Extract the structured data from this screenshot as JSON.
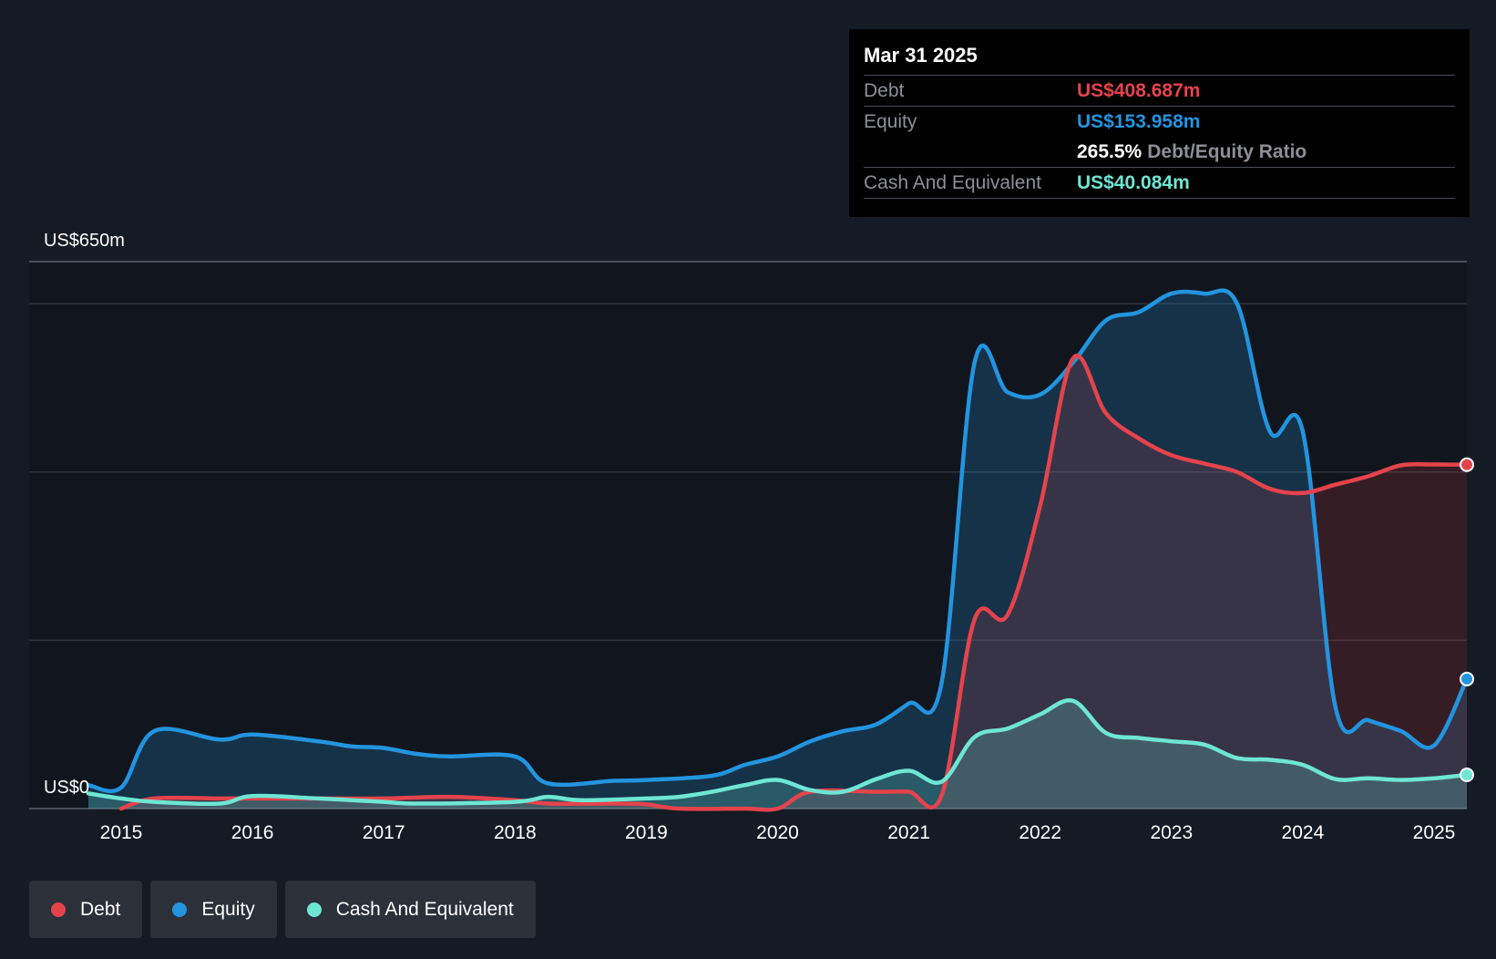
{
  "chart_data": {
    "type": "area",
    "y_top_label": "US$650m",
    "y_bottom_label": "US$0",
    "ylim": [
      0,
      650
    ],
    "x_ticks": [
      "2015",
      "2016",
      "2017",
      "2018",
      "2019",
      "2020",
      "2021",
      "2022",
      "2023",
      "2024",
      "2025"
    ],
    "grid": true,
    "series": [
      {
        "name": "Debt",
        "color": "#e5434c",
        "points": [
          [
            2015.0,
            0
          ],
          [
            2015.25,
            12
          ],
          [
            2015.75,
            12
          ],
          [
            2016.0,
            12
          ],
          [
            2016.5,
            12
          ],
          [
            2017.0,
            12
          ],
          [
            2017.5,
            14
          ],
          [
            2018.0,
            10
          ],
          [
            2018.25,
            6
          ],
          [
            2018.75,
            6
          ],
          [
            2019.0,
            5
          ],
          [
            2019.25,
            0
          ],
          [
            2019.75,
            0
          ],
          [
            2020.0,
            0
          ],
          [
            2020.25,
            20
          ],
          [
            2020.75,
            20
          ],
          [
            2021.0,
            20
          ],
          [
            2021.25,
            16
          ],
          [
            2021.5,
            225
          ],
          [
            2021.75,
            230
          ],
          [
            2022.0,
            360
          ],
          [
            2022.25,
            535
          ],
          [
            2022.5,
            470
          ],
          [
            2022.75,
            440
          ],
          [
            2023.0,
            420
          ],
          [
            2023.25,
            410
          ],
          [
            2023.5,
            400
          ],
          [
            2023.75,
            380
          ],
          [
            2024.0,
            375
          ],
          [
            2024.25,
            385
          ],
          [
            2024.5,
            395
          ],
          [
            2024.75,
            408
          ],
          [
            2025.0,
            409
          ],
          [
            2025.25,
            408.687
          ]
        ]
      },
      {
        "name": "Equity",
        "color": "#2394df",
        "points": [
          [
            2014.75,
            28
          ],
          [
            2015.0,
            25
          ],
          [
            2015.25,
            92
          ],
          [
            2015.75,
            82
          ],
          [
            2016.0,
            88
          ],
          [
            2016.5,
            80
          ],
          [
            2016.75,
            74
          ],
          [
            2017.0,
            72
          ],
          [
            2017.25,
            65
          ],
          [
            2017.5,
            62
          ],
          [
            2018.0,
            62
          ],
          [
            2018.25,
            30
          ],
          [
            2018.75,
            33
          ],
          [
            2019.0,
            34
          ],
          [
            2019.5,
            39
          ],
          [
            2019.75,
            52
          ],
          [
            2020.0,
            62
          ],
          [
            2020.25,
            80
          ],
          [
            2020.5,
            92
          ],
          [
            2020.75,
            100
          ],
          [
            2021.0,
            125
          ],
          [
            2021.25,
            150
          ],
          [
            2021.5,
            530
          ],
          [
            2021.75,
            495
          ],
          [
            2022.0,
            492
          ],
          [
            2022.25,
            530
          ],
          [
            2022.5,
            580
          ],
          [
            2022.75,
            590
          ],
          [
            2023.0,
            612
          ],
          [
            2023.25,
            612
          ],
          [
            2023.5,
            600
          ],
          [
            2023.75,
            448
          ],
          [
            2024.0,
            448
          ],
          [
            2024.25,
            120
          ],
          [
            2024.5,
            105
          ],
          [
            2024.75,
            92
          ],
          [
            2025.0,
            75
          ],
          [
            2025.25,
            153.958
          ]
        ]
      },
      {
        "name": "Cash And Equivalent",
        "color": "#6ee6d4",
        "points": [
          [
            2014.75,
            18
          ],
          [
            2015.0,
            12
          ],
          [
            2015.25,
            8
          ],
          [
            2015.75,
            6
          ],
          [
            2016.0,
            15
          ],
          [
            2016.5,
            12
          ],
          [
            2017.0,
            8
          ],
          [
            2017.25,
            6
          ],
          [
            2018.0,
            8
          ],
          [
            2018.25,
            14
          ],
          [
            2018.5,
            10
          ],
          [
            2019.0,
            12
          ],
          [
            2019.25,
            14
          ],
          [
            2019.5,
            20
          ],
          [
            2019.75,
            28
          ],
          [
            2020.0,
            34
          ],
          [
            2020.25,
            22
          ],
          [
            2020.5,
            20
          ],
          [
            2020.75,
            35
          ],
          [
            2021.0,
            45
          ],
          [
            2021.25,
            32
          ],
          [
            2021.5,
            85
          ],
          [
            2021.75,
            95
          ],
          [
            2022.0,
            112
          ],
          [
            2022.25,
            128
          ],
          [
            2022.5,
            90
          ],
          [
            2022.75,
            84
          ],
          [
            2023.0,
            80
          ],
          [
            2023.25,
            76
          ],
          [
            2023.5,
            60
          ],
          [
            2023.75,
            58
          ],
          [
            2024.0,
            52
          ],
          [
            2024.25,
            35
          ],
          [
            2024.5,
            36
          ],
          [
            2024.75,
            34
          ],
          [
            2025.0,
            36
          ],
          [
            2025.25,
            40.084
          ]
        ]
      }
    ]
  },
  "tooltip": {
    "date": "Mar 31 2025",
    "rows": [
      {
        "label": "Debt",
        "value": "US$408.687m",
        "color": "#e5434c"
      },
      {
        "label": "Equity",
        "value": "US$153.958m",
        "color": "#2394df"
      }
    ],
    "ratio_value": "265.5%",
    "ratio_label": "Debt/Equity Ratio",
    "cash_label": "Cash And Equivalent",
    "cash_value": "US$40.084m",
    "cash_color": "#6ee6d4"
  },
  "legend": [
    {
      "label": "Debt",
      "color": "#e5434c"
    },
    {
      "label": "Equity",
      "color": "#2394df"
    },
    {
      "label": "Cash And Equivalent",
      "color": "#6ee6d4"
    }
  ]
}
